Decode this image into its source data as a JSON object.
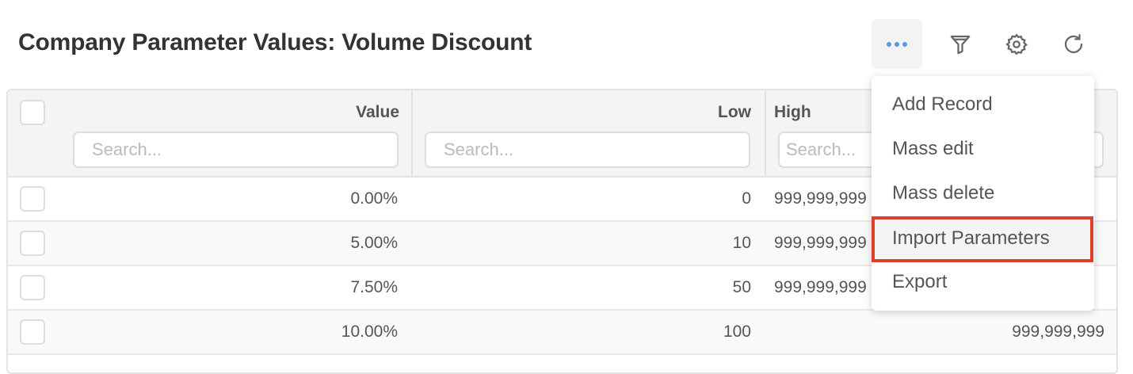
{
  "header": {
    "title": "Company Parameter Values: Volume Discount"
  },
  "toolbar": {
    "buttons": [
      {
        "icon": "more-dots-icon",
        "accent": "#5b9ae8"
      },
      {
        "icon": "filter-icon"
      },
      {
        "icon": "gear-icon"
      },
      {
        "icon": "refresh-icon"
      }
    ]
  },
  "table": {
    "columns": [
      {
        "label": "Value",
        "placeholder": "Search..."
      },
      {
        "label": "Low",
        "placeholder": "Search..."
      },
      {
        "label": "High",
        "placeholder": "Search..."
      }
    ],
    "rows": [
      {
        "value": "0.00%",
        "low": "0",
        "high": "999,999,999"
      },
      {
        "value": "5.00%",
        "low": "10",
        "high": "999,999,999"
      },
      {
        "value": "7.50%",
        "low": "50",
        "high": "999,999,999"
      },
      {
        "value": "10.00%",
        "low": "100",
        "high": "999,999,999"
      }
    ]
  },
  "menu": {
    "items": [
      {
        "label": "Add Record"
      },
      {
        "label": "Mass edit"
      },
      {
        "label": "Mass delete"
      },
      {
        "label": "Import Parameters",
        "highlighted": true
      },
      {
        "label": "Export"
      }
    ],
    "highlight_color": "#e0402a"
  }
}
